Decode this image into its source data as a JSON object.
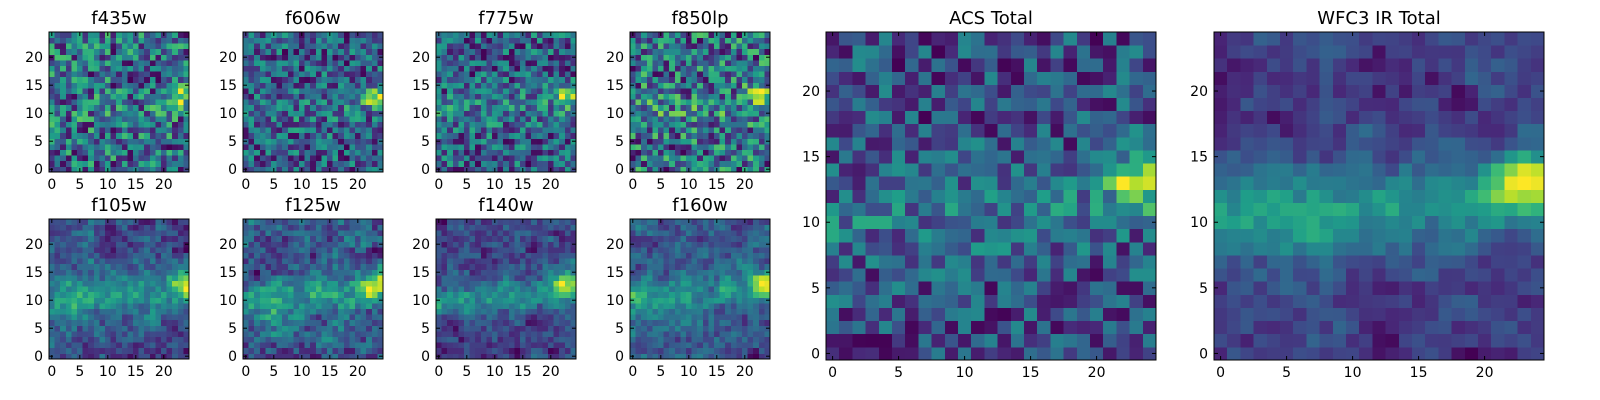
{
  "chart_data": [
    {
      "type": "heatmap",
      "title": "f435w",
      "grid_size": 25,
      "xlim": [
        -0.5,
        24.5
      ],
      "ylim": [
        -0.5,
        24.5
      ],
      "xticks": [
        0,
        5,
        10,
        15,
        20
      ],
      "yticks": [
        0,
        5,
        10,
        15,
        20
      ],
      "colormap": "viridis",
      "seed": 11,
      "profile": {
        "mean": 0.6,
        "noise": 0.4,
        "band": 0.05,
        "source": 0.4,
        "blur": 0
      }
    },
    {
      "type": "heatmap",
      "title": "f606w",
      "grid_size": 25,
      "xlim": [
        -0.5,
        24.5
      ],
      "ylim": [
        -0.5,
        24.5
      ],
      "xticks": [
        0,
        5,
        10,
        15,
        20
      ],
      "yticks": [
        0,
        5,
        10,
        15,
        20
      ],
      "colormap": "viridis",
      "seed": 23,
      "profile": {
        "mean": 0.45,
        "noise": 0.32,
        "band": 0.1,
        "source": 0.55,
        "blur": 0
      }
    },
    {
      "type": "heatmap",
      "title": "f775w",
      "grid_size": 25,
      "xlim": [
        -0.5,
        24.5
      ],
      "ylim": [
        -0.5,
        24.5
      ],
      "xticks": [
        0,
        5,
        10,
        15,
        20
      ],
      "yticks": [
        0,
        5,
        10,
        15,
        20
      ],
      "colormap": "viridis",
      "seed": 37,
      "profile": {
        "mean": 0.5,
        "noise": 0.32,
        "band": 0.12,
        "source": 0.5,
        "blur": 0
      }
    },
    {
      "type": "heatmap",
      "title": "f850lp",
      "grid_size": 25,
      "xlim": [
        -0.5,
        24.5
      ],
      "ylim": [
        -0.5,
        24.5
      ],
      "xticks": [
        0,
        5,
        10,
        15,
        20
      ],
      "yticks": [
        0,
        5,
        10,
        15,
        20
      ],
      "colormap": "viridis",
      "seed": 41,
      "profile": {
        "mean": 0.58,
        "noise": 0.38,
        "band": 0.1,
        "source": 0.45,
        "blur": 0
      }
    },
    {
      "type": "heatmap",
      "title": "f105w",
      "grid_size": 25,
      "xlim": [
        -0.5,
        24.5
      ],
      "ylim": [
        -0.5,
        24.5
      ],
      "xticks": [
        0,
        5,
        10,
        15,
        20
      ],
      "yticks": [
        0,
        5,
        10,
        15,
        20
      ],
      "colormap": "viridis",
      "seed": 53,
      "profile": {
        "mean": 0.45,
        "noise": 0.22,
        "band": 0.22,
        "source": 0.5,
        "blur": 1
      }
    },
    {
      "type": "heatmap",
      "title": "f125w",
      "grid_size": 25,
      "xlim": [
        -0.5,
        24.5
      ],
      "ylim": [
        -0.5,
        24.5
      ],
      "xticks": [
        0,
        5,
        10,
        15,
        20
      ],
      "yticks": [
        0,
        5,
        10,
        15,
        20
      ],
      "colormap": "viridis",
      "seed": 67,
      "profile": {
        "mean": 0.55,
        "noise": 0.25,
        "band": 0.22,
        "source": 0.45,
        "blur": 1
      }
    },
    {
      "type": "heatmap",
      "title": "f140w",
      "grid_size": 25,
      "xlim": [
        -0.5,
        24.5
      ],
      "ylim": [
        -0.5,
        24.5
      ],
      "xticks": [
        0,
        5,
        10,
        15,
        20
      ],
      "yticks": [
        0,
        5,
        10,
        15,
        20
      ],
      "colormap": "viridis",
      "seed": 79,
      "profile": {
        "mean": 0.35,
        "noise": 0.2,
        "band": 0.24,
        "source": 0.48,
        "blur": 1
      }
    },
    {
      "type": "heatmap",
      "title": "f160w",
      "grid_size": 25,
      "xlim": [
        -0.5,
        24.5
      ],
      "ylim": [
        -0.5,
        24.5
      ],
      "xticks": [
        0,
        5,
        10,
        15,
        20
      ],
      "yticks": [
        0,
        5,
        10,
        15,
        20
      ],
      "colormap": "viridis",
      "seed": 83,
      "profile": {
        "mean": 0.3,
        "noise": 0.24,
        "band": 0.26,
        "source": 0.55,
        "blur": 1
      }
    },
    {
      "type": "heatmap",
      "title": "ACS Total",
      "grid_size": 25,
      "xlim": [
        -0.5,
        24.5
      ],
      "ylim": [
        -0.5,
        24.5
      ],
      "xticks": [
        0,
        5,
        10,
        15,
        20
      ],
      "yticks": [
        0,
        5,
        10,
        15,
        20
      ],
      "colormap": "viridis",
      "seed": 97,
      "profile": {
        "mean": 0.45,
        "noise": 0.26,
        "band": 0.14,
        "source": 0.55,
        "blur": 0
      }
    },
    {
      "type": "heatmap",
      "title": "WFC3 IR Total",
      "grid_size": 25,
      "xlim": [
        -0.5,
        24.5
      ],
      "ylim": [
        -0.5,
        24.5
      ],
      "xticks": [
        0,
        5,
        10,
        15,
        20
      ],
      "yticks": [
        0,
        5,
        10,
        15,
        20
      ],
      "colormap": "viridis",
      "seed": 101,
      "profile": {
        "mean": 0.3,
        "noise": 0.14,
        "band": 0.26,
        "source": 0.55,
        "blur": 1
      }
    }
  ]
}
